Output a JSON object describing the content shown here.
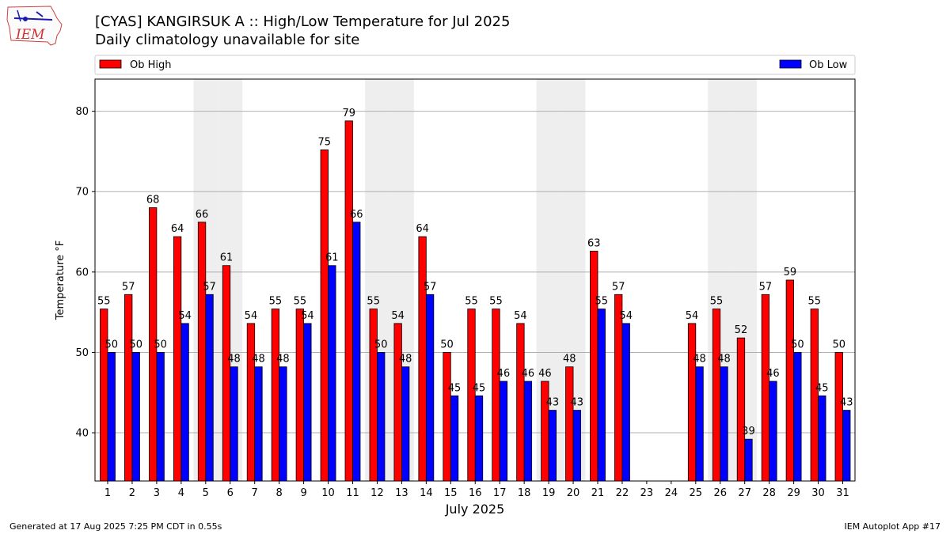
{
  "header": {
    "title": "[CYAS] KANGIRSUK A :: High/Low Temperature for Jul 2025",
    "subtitle": "Daily climatology unavailable for site"
  },
  "logo": {
    "text": "IEM",
    "icon": "iem-iowa-logo-icon"
  },
  "footer": {
    "left": "Generated at 17 Aug 2025 7:25 PM CDT in 0.55s",
    "right": "IEM Autoplot App #17"
  },
  "colors": {
    "high": "#ff0000",
    "low": "#0000ff",
    "weekend": "#eeeeee",
    "grid": "#b0b0b0"
  },
  "chart_data": {
    "type": "bar",
    "xlabel": "July 2025",
    "ylabel": "Temperature °F",
    "ylim": [
      34,
      84
    ],
    "yticks": [
      40,
      50,
      60,
      70,
      80
    ],
    "grid": "y",
    "legend": "top, Ob High left / Ob Low right",
    "categories": [
      "1",
      "2",
      "3",
      "4",
      "5",
      "6",
      "7",
      "8",
      "9",
      "10",
      "11",
      "12",
      "13",
      "14",
      "15",
      "16",
      "17",
      "18",
      "19",
      "20",
      "21",
      "22",
      "23",
      "24",
      "25",
      "26",
      "27",
      "28",
      "29",
      "30",
      "31"
    ],
    "shaded_days": [
      "5",
      "6",
      "12",
      "13",
      "19",
      "20",
      "26",
      "27"
    ],
    "series": [
      {
        "name": "Ob High",
        "color": "#ff0000",
        "values": [
          55,
          57,
          68,
          64,
          66,
          61,
          54,
          55,
          55,
          75,
          79,
          55,
          54,
          64,
          50,
          55,
          55,
          54,
          46,
          48,
          63,
          57,
          null,
          null,
          54,
          55,
          52,
          57,
          59,
          55,
          50
        ],
        "plot_values": [
          55.4,
          57.2,
          68,
          64.4,
          66.2,
          60.8,
          53.6,
          55.4,
          55.4,
          75.2,
          78.8,
          55.4,
          53.6,
          64.4,
          50,
          55.4,
          55.4,
          53.6,
          46.4,
          48.2,
          62.6,
          57.2,
          null,
          null,
          53.6,
          55.4,
          51.8,
          57.2,
          59,
          55.4,
          50
        ]
      },
      {
        "name": "Ob Low",
        "color": "#0000ff",
        "values": [
          50,
          50,
          50,
          54,
          57,
          48,
          48,
          48,
          54,
          61,
          66,
          50,
          48,
          57,
          45,
          45,
          46,
          46,
          43,
          43,
          55,
          54,
          null,
          null,
          48,
          48,
          39,
          46,
          50,
          45,
          43
        ],
        "plot_values": [
          50,
          50,
          50,
          53.6,
          57.2,
          48.2,
          48.2,
          48.2,
          53.6,
          60.8,
          66.2,
          50,
          48.2,
          57.2,
          44.6,
          44.6,
          46.4,
          46.4,
          42.8,
          42.8,
          55.4,
          53.6,
          null,
          null,
          48.2,
          48.2,
          39.2,
          46.4,
          50,
          44.6,
          42.8
        ]
      }
    ]
  }
}
